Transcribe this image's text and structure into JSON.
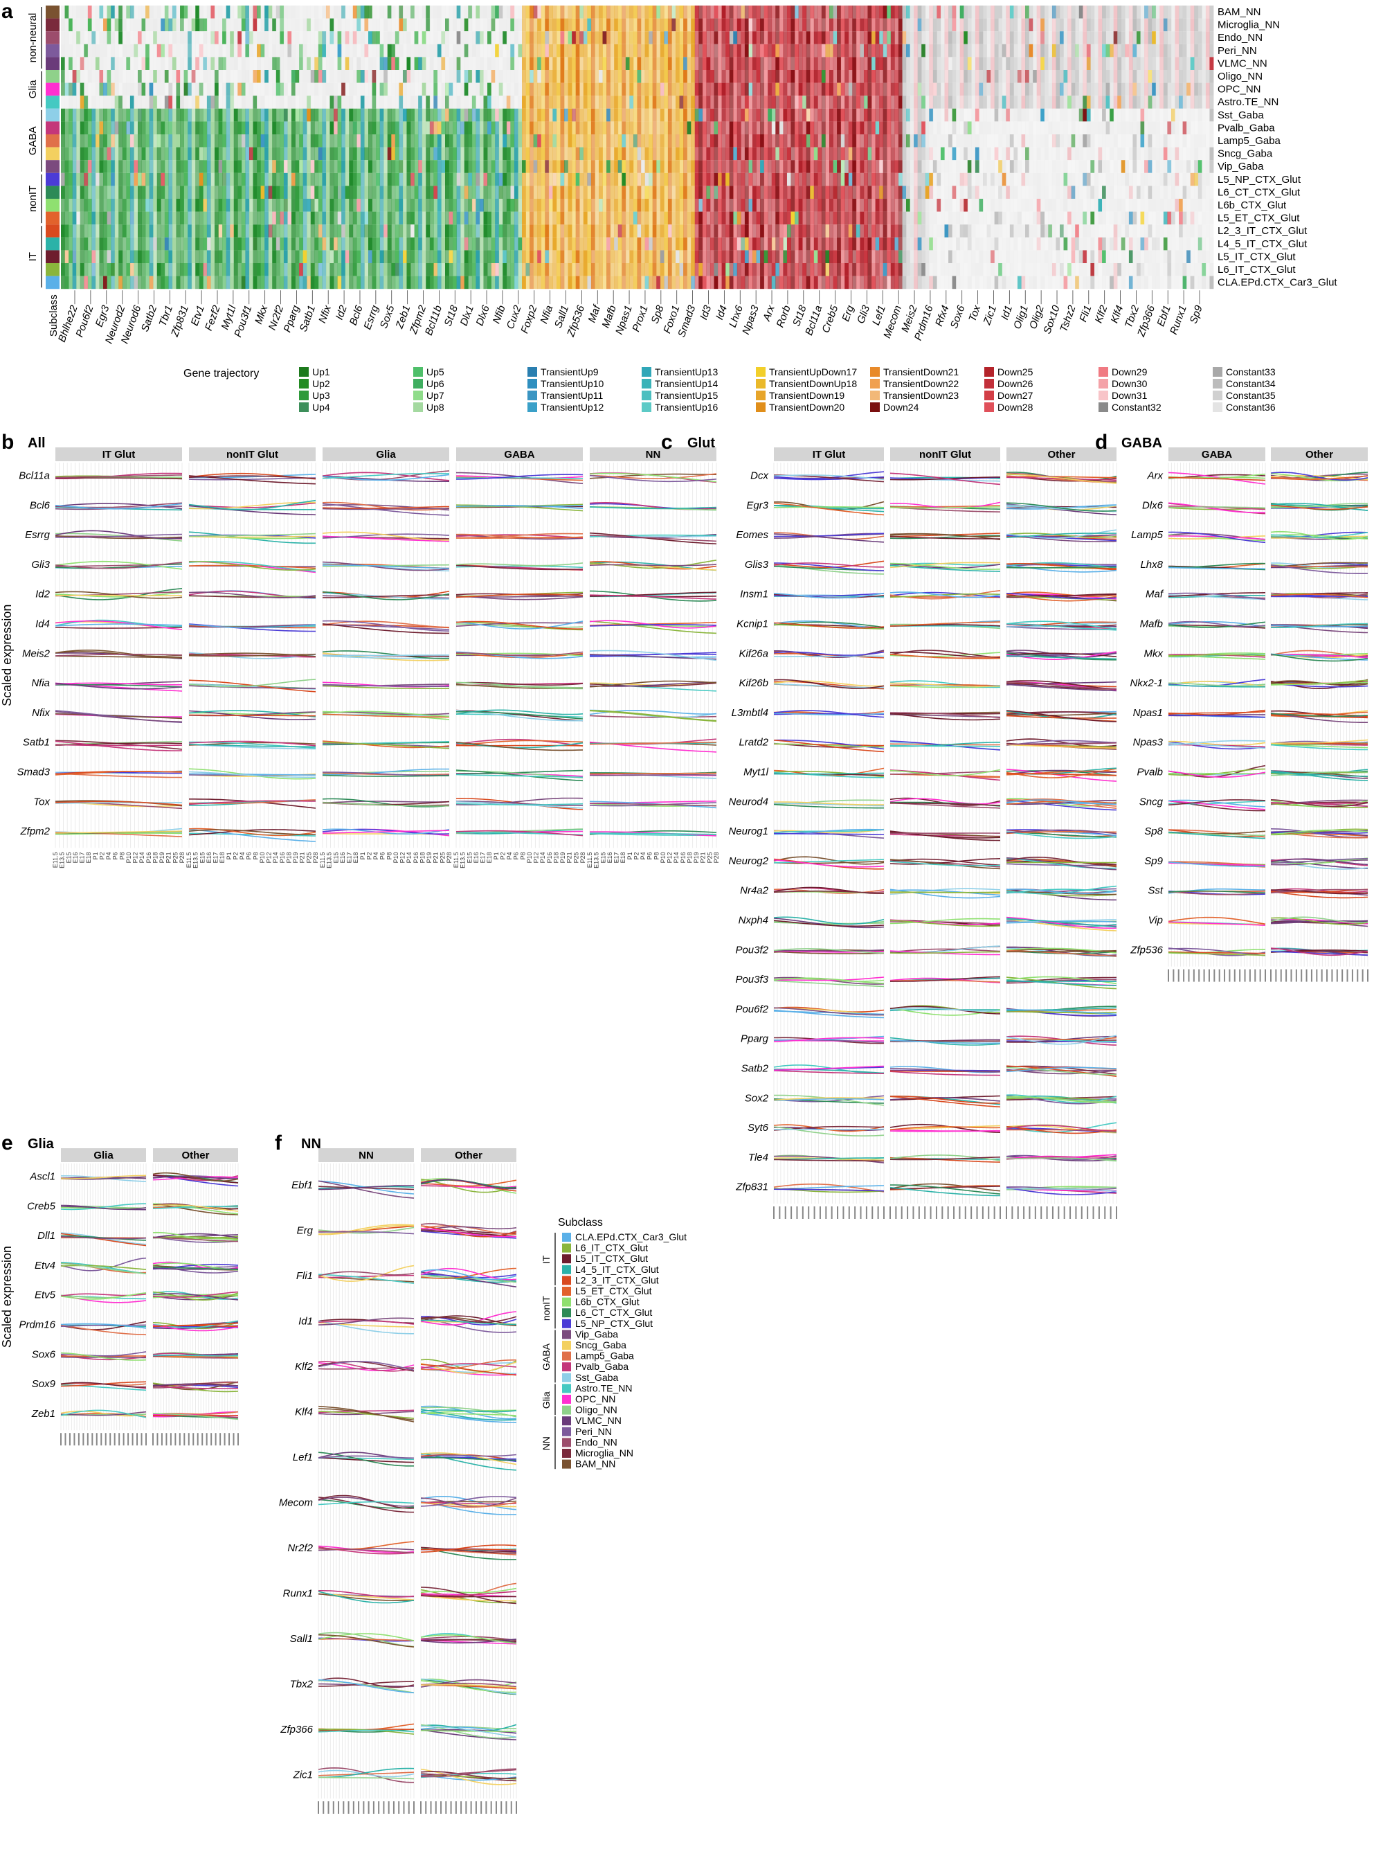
{
  "chart_data": [
    {
      "panel": "a",
      "type": "heatmap",
      "row_header": "Subclass",
      "row_groups": [
        "non-neural",
        "Glia",
        "GABA",
        "nonIT",
        "IT"
      ],
      "rows": [
        "BAM_NN",
        "Microglia_NN",
        "Endo_NN",
        "Peri_NN",
        "VLMC_NN",
        "Oligo_NN",
        "OPC_NN",
        "Astro.TE_NN",
        "Sst_Gaba",
        "Pvalb_Gaba",
        "Lamp5_Gaba",
        "Sncg_Gaba",
        "Vip_Gaba",
        "L5_NP_CTX_Glut",
        "L6_CT_CTX_Glut",
        "L6b_CTX_Glut",
        "L5_ET_CTX_Glut",
        "L2_3_IT_CTX_Glut",
        "L4_5_IT_CTX_Glut",
        "L5_IT_CTX_Glut",
        "L6_IT_CTX_Glut",
        "CLA.EPd.CTX_Car3_Glut"
      ],
      "row_colors": [
        "#7a5230",
        "#7a2a3c",
        "#9c4d6c",
        "#7d5a9c",
        "#6a3b7a",
        "#8fd18a",
        "#ff2fd0",
        "#45c9c2",
        "#8ecfe8",
        "#c4367a",
        "#e0704a",
        "#f3d060",
        "#7b4a7e",
        "#4b3bd6",
        "#2d8a57",
        "#8fe070",
        "#e2622c",
        "#d94a1f",
        "#2bb2a8",
        "#6e1d2e",
        "#8ab53c",
        "#5ab0e8"
      ],
      "genes": [
        "Bhlhe22",
        "Pou6f2",
        "Egr3",
        "Neurod2",
        "Neurod6",
        "Satb2",
        "Tbr1",
        "Zfp831",
        "Etv1",
        "Fezf2",
        "Myt1l",
        "Pou3f1",
        "Mkx",
        "Nr2f2",
        "Pparg",
        "Satb1",
        "Nfix",
        "Id2",
        "Bcl6",
        "Esrrg",
        "Sox5",
        "Zeb1",
        "Zfpm2",
        "Bcl11b",
        "St18",
        "Dlx1",
        "Dlx6",
        "Nfib",
        "Cux2",
        "Foxp2",
        "Nfia",
        "Sall1",
        "Zfp536",
        "Maf",
        "Mafb",
        "Npas1",
        "Prox1",
        "Sp8",
        "Foxo1",
        "Smad3",
        "Id3",
        "Id4",
        "Lhx6",
        "Npas3",
        "Arx",
        "Rorb",
        "St18",
        "Bcl11a",
        "Creb5",
        "Erg",
        "Gli3",
        "Lef1",
        "Mecom",
        "Meis2",
        "Prdm16",
        "Rfx4",
        "Sox6",
        "Tox",
        "Zic1",
        "Id1",
        "Olig1",
        "Olig2",
        "Sox10",
        "Tshz2",
        "Fli1",
        "Klf2",
        "Klf4",
        "Tbx2",
        "Zfp366",
        "Ebf1",
        "Runx1",
        "Sp9"
      ],
      "trajectory_legend_title": "Gene trajectory",
      "trajectories": [
        {
          "name": "Up1",
          "color": "#1d7a1d"
        },
        {
          "name": "Up2",
          "color": "#238b23"
        },
        {
          "name": "Up3",
          "color": "#2e9a3a"
        },
        {
          "name": "Up4",
          "color": "#3d8f5a"
        },
        {
          "name": "Up5",
          "color": "#4fbf6a"
        },
        {
          "name": "Up6",
          "color": "#3fae60"
        },
        {
          "name": "Up7",
          "color": "#8fdc8a"
        },
        {
          "name": "Up8",
          "color": "#a4d9a0"
        },
        {
          "name": "TransientUp9",
          "color": "#2a7fb0"
        },
        {
          "name": "TransientUp10",
          "color": "#2f8fbf"
        },
        {
          "name": "TransientUp11",
          "color": "#3a95c2"
        },
        {
          "name": "TransientUp12",
          "color": "#3aa0c8"
        },
        {
          "name": "TransientUp13",
          "color": "#30a7b8"
        },
        {
          "name": "TransientUp14",
          "color": "#3ab3b8"
        },
        {
          "name": "TransientUp15",
          "color": "#4cbfc0"
        },
        {
          "name": "TransientUp16",
          "color": "#5ccac6"
        },
        {
          "name": "TransientUpDown17",
          "color": "#f2cf2a"
        },
        {
          "name": "TransientDownUp18",
          "color": "#eab92a"
        },
        {
          "name": "TransientDown19",
          "color": "#e7a52a"
        },
        {
          "name": "TransientDown20",
          "color": "#e08e1a"
        },
        {
          "name": "TransientDown21",
          "color": "#e88a2a"
        },
        {
          "name": "TransientDown22",
          "color": "#f0a050"
        },
        {
          "name": "TransientDown23",
          "color": "#f2b878"
        },
        {
          "name": "Down24",
          "color": "#7a0f0f"
        },
        {
          "name": "Down25",
          "color": "#b4232a"
        },
        {
          "name": "Down26",
          "color": "#c2303a"
        },
        {
          "name": "Down27",
          "color": "#d23e46"
        },
        {
          "name": "Down28",
          "color": "#e0505a"
        },
        {
          "name": "Down29",
          "color": "#f07a82"
        },
        {
          "name": "Down30",
          "color": "#f4a2a8"
        },
        {
          "name": "Down31",
          "color": "#f8c4c8"
        },
        {
          "name": "Constant32",
          "color": "#8a8a8a"
        },
        {
          "name": "Constant33",
          "color": "#a8a8a8"
        },
        {
          "name": "Constant34",
          "color": "#bcbcbc"
        },
        {
          "name": "Constant35",
          "color": "#d0d0d0"
        },
        {
          "name": "Constant36",
          "color": "#e4e4e4"
        }
      ]
    },
    {
      "panel": "b",
      "type": "line",
      "title": "All",
      "ylabel": "Scaled expression",
      "facets": [
        "IT Glut",
        "nonIT Glut",
        "Glia",
        "GABA",
        "NN"
      ],
      "genes": [
        "Bcl11a",
        "Bcl6",
        "Esrrg",
        "Gli3",
        "Id2",
        "Id4",
        "Meis2",
        "Nfia",
        "Nfix",
        "Satb1",
        "Smad3",
        "Tox",
        "Zfpm2"
      ],
      "x": [
        "E11.5",
        "E12.5",
        "E13.5",
        "E14.5",
        "E15.5",
        "E16.5",
        "E17.5",
        "E18.5",
        "P0",
        "P1",
        "P2",
        "P3",
        "P4",
        "P5",
        "P6",
        "P7",
        "P8",
        "P9",
        "P10",
        "P11",
        "P12",
        "P13",
        "P14",
        "P15",
        "P16",
        "P17",
        "P18",
        "P19",
        "P20",
        "P21",
        "P23",
        "P25",
        "P28"
      ],
      "x_tick_labels": [
        "E11.5",
        "E13.5",
        "E15",
        "E16",
        "E17",
        "E18",
        "P1",
        "P2",
        "P4",
        "P6",
        "P8",
        "P10",
        "P12",
        "P14",
        "P16",
        "P18",
        "P19",
        "P21",
        "P25",
        "P28"
      ]
    },
    {
      "panel": "c",
      "type": "line",
      "title": "Glut",
      "facets": [
        "IT Glut",
        "nonIT Glut",
        "Other"
      ],
      "genes": [
        "Dcx",
        "Egr3",
        "Eomes",
        "Glis3",
        "Insm1",
        "Kcnip1",
        "Kif26a",
        "Kif26b",
        "L3mbtl4",
        "Lratd2",
        "Myt1l",
        "Neurod4",
        "Neurog1",
        "Neurog2",
        "Nr4a2",
        "Nxph4",
        "Pou3f2",
        "Pou3f3",
        "Pou6f2",
        "Pparg",
        "Satb2",
        "Sox2",
        "Syt6",
        "Tle4",
        "Zfp831"
      ]
    },
    {
      "panel": "d",
      "type": "line",
      "title": "GABA",
      "facets": [
        "GABA",
        "Other"
      ],
      "genes": [
        "Arx",
        "Dlx6",
        "Lamp5",
        "Lhx8",
        "Maf",
        "Mafb",
        "Mkx",
        "Nkx2-1",
        "Npas1",
        "Npas3",
        "Pvalb",
        "Sncg",
        "Sp8",
        "Sp9",
        "Sst",
        "Vip",
        "Zfp536"
      ]
    },
    {
      "panel": "e",
      "type": "line",
      "title": "Glia",
      "ylabel": "Scaled expression",
      "facets": [
        "Glia",
        "Other"
      ],
      "genes": [
        "Ascl1",
        "Creb5",
        "Dll1",
        "Etv4",
        "Etv5",
        "Prdm16",
        "Sox6",
        "Sox9",
        "Zeb1"
      ]
    },
    {
      "panel": "f",
      "type": "line",
      "title": "NN",
      "facets": [
        "NN",
        "Other"
      ],
      "genes": [
        "Ebf1",
        "Erg",
        "Fli1",
        "Id1",
        "Klf2",
        "Klf4",
        "Lef1",
        "Mecom",
        "Nr2f2",
        "Runx1",
        "Sall1",
        "Tbx2",
        "Zfp366",
        "Zic1"
      ]
    }
  ],
  "subclass_legend": {
    "title": "Subclass",
    "groups": [
      {
        "name": "IT",
        "items": [
          {
            "name": "CLA.EPd.CTX_Car3_Glut",
            "color": "#5ab0e8"
          },
          {
            "name": "L6_IT_CTX_Glut",
            "color": "#8ab53c"
          },
          {
            "name": "L5_IT_CTX_Glut",
            "color": "#6e1d2e"
          },
          {
            "name": "L4_5_IT_CTX_Glut",
            "color": "#2bb2a8"
          },
          {
            "name": "L2_3_IT_CTX_Glut",
            "color": "#d94a1f"
          }
        ]
      },
      {
        "name": "nonIT",
        "items": [
          {
            "name": "L5_ET_CTX_Glut",
            "color": "#e2622c"
          },
          {
            "name": "L6b_CTX_Glut",
            "color": "#8fe070"
          },
          {
            "name": "L6_CT_CTX_Glut",
            "color": "#2d8a57"
          },
          {
            "name": "L5_NP_CTX_Glut",
            "color": "#4b3bd6"
          }
        ]
      },
      {
        "name": "GABA",
        "items": [
          {
            "name": "Vip_Gaba",
            "color": "#7b4a7e"
          },
          {
            "name": "Sncg_Gaba",
            "color": "#f3d060"
          },
          {
            "name": "Lamp5_Gaba",
            "color": "#e0704a"
          },
          {
            "name": "Pvalb_Gaba",
            "color": "#c4367a"
          },
          {
            "name": "Sst_Gaba",
            "color": "#8ecfe8"
          }
        ]
      },
      {
        "name": "Glia",
        "items": [
          {
            "name": "Astro.TE_NN",
            "color": "#45c9c2"
          },
          {
            "name": "OPC_NN",
            "color": "#ff2fd0"
          },
          {
            "name": "Oligo_NN",
            "color": "#8fd18a"
          }
        ]
      },
      {
        "name": "NN",
        "items": [
          {
            "name": "VLMC_NN",
            "color": "#6a3b7a"
          },
          {
            "name": "Peri_NN",
            "color": "#7d5a9c"
          },
          {
            "name": "Endo_NN",
            "color": "#9c4d6c"
          },
          {
            "name": "Microglia_NN",
            "color": "#7a2a3c"
          },
          {
            "name": "BAM_NN",
            "color": "#7a5230"
          }
        ]
      }
    ]
  },
  "panel_letters": [
    "a",
    "b",
    "c",
    "d",
    "e",
    "f"
  ]
}
